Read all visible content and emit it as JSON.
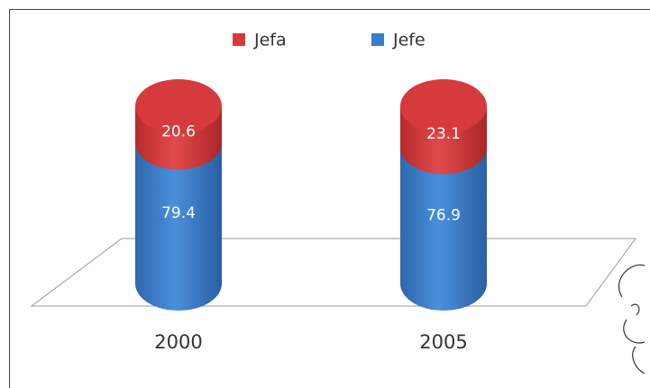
{
  "chart_data": {
    "type": "stacked-cylinder",
    "categories": [
      "2000",
      "2005"
    ],
    "series": [
      {
        "name": "Jefa",
        "color": "#d9383a",
        "values": [
          20.6,
          23.1
        ]
      },
      {
        "name": "Jefe",
        "color": "#3a7cc9",
        "values": [
          79.4,
          76.9
        ]
      }
    ]
  }
}
